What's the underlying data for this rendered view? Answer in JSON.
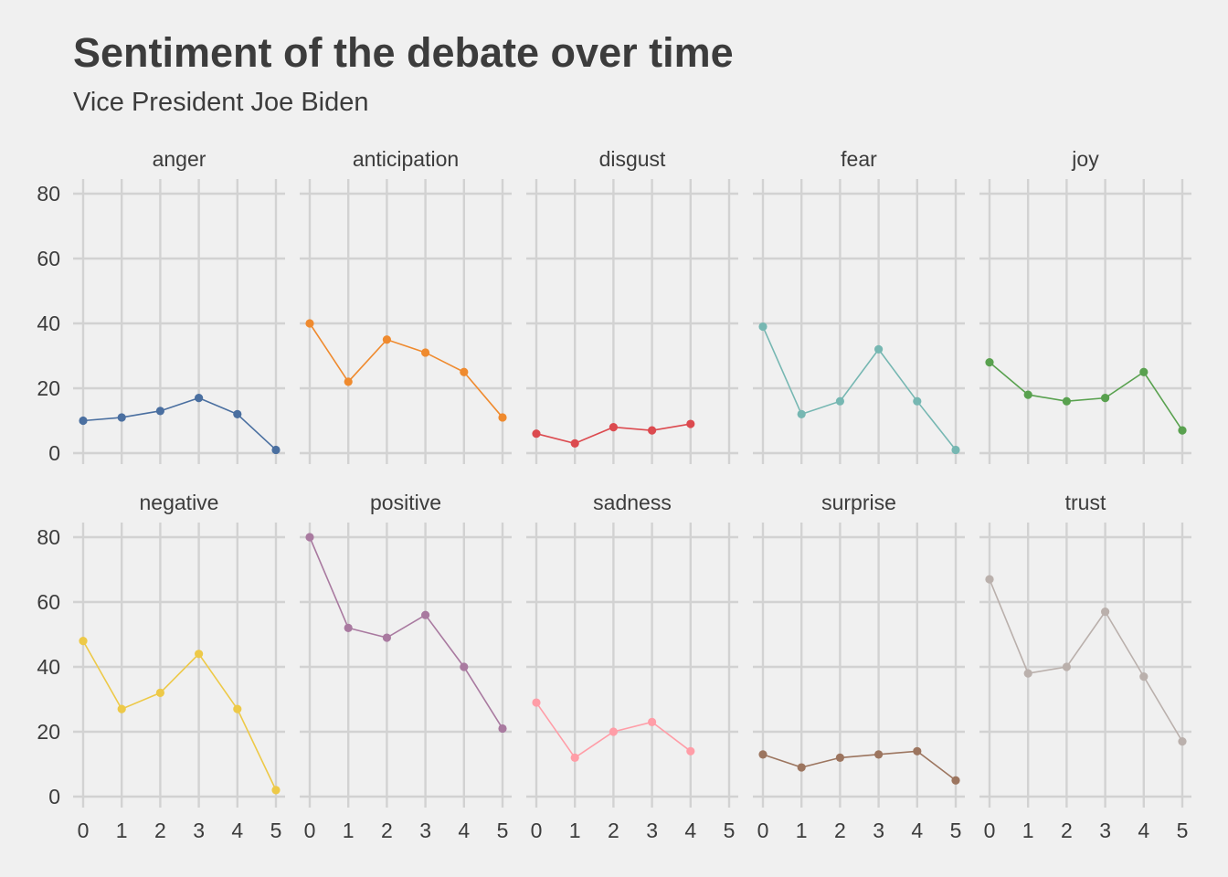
{
  "chart_data": {
    "type": "line",
    "title": "Sentiment of the debate over time",
    "subtitle": "Vice President Joe Biden",
    "xlabel": "",
    "ylabel": "",
    "x_ticks": [
      0,
      1,
      2,
      3,
      4,
      5
    ],
    "y_ticks": [
      0,
      20,
      40,
      60,
      80
    ],
    "xlim": [
      0,
      5
    ],
    "ylim": [
      0,
      80
    ],
    "grid": true,
    "legend": "none",
    "facet_layout": "2 rows x 5 columns",
    "series": [
      {
        "name": "anger",
        "color": "#4a6fa0",
        "x": [
          0,
          1,
          2,
          3,
          4,
          5
        ],
        "values": [
          10,
          11,
          13,
          17,
          12,
          1
        ]
      },
      {
        "name": "anticipation",
        "color": "#ef8a2e",
        "x": [
          0,
          1,
          2,
          3,
          4,
          5
        ],
        "values": [
          40,
          22,
          35,
          31,
          25,
          11
        ]
      },
      {
        "name": "disgust",
        "color": "#dc4a4f",
        "x": [
          0,
          1,
          2,
          3,
          4
        ],
        "values": [
          6,
          3,
          8,
          7,
          9
        ]
      },
      {
        "name": "fear",
        "color": "#76b7b2",
        "x": [
          0,
          1,
          2,
          3,
          4,
          5
        ],
        "values": [
          39,
          12,
          16,
          32,
          16,
          1
        ]
      },
      {
        "name": "joy",
        "color": "#59a14f",
        "x": [
          0,
          1,
          2,
          3,
          4,
          5
        ],
        "values": [
          28,
          18,
          16,
          17,
          25,
          7
        ]
      },
      {
        "name": "negative",
        "color": "#edc948",
        "x": [
          0,
          1,
          2,
          3,
          4,
          5
        ],
        "values": [
          48,
          27,
          32,
          44,
          27,
          2
        ]
      },
      {
        "name": "positive",
        "color": "#a97aa0",
        "x": [
          0,
          1,
          2,
          3,
          4,
          5
        ],
        "values": [
          80,
          52,
          49,
          56,
          40,
          21
        ]
      },
      {
        "name": "sadness",
        "color": "#ff9da7",
        "x": [
          0,
          1,
          2,
          3,
          4
        ],
        "values": [
          29,
          12,
          20,
          23,
          14
        ]
      },
      {
        "name": "surprise",
        "color": "#9c755f",
        "x": [
          0,
          1,
          2,
          3,
          4,
          5
        ],
        "values": [
          13,
          9,
          12,
          13,
          14,
          5
        ]
      },
      {
        "name": "trust",
        "color": "#bab0ac",
        "x": [
          0,
          1,
          2,
          3,
          4,
          5
        ],
        "values": [
          67,
          38,
          40,
          57,
          37,
          17
        ]
      }
    ]
  }
}
